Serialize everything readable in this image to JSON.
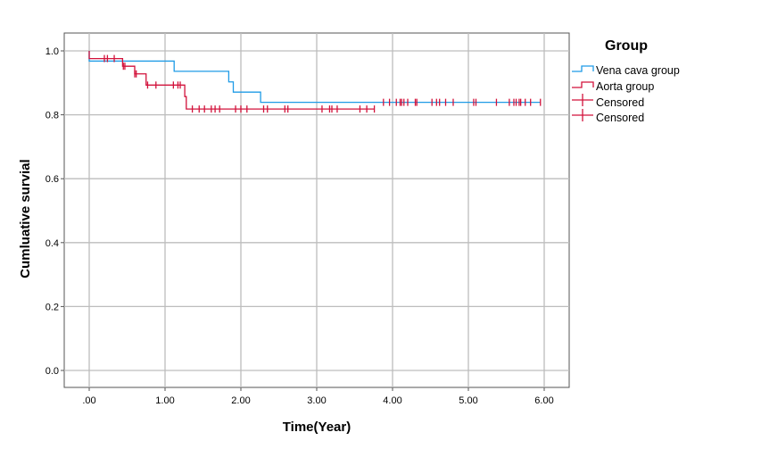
{
  "chart_data": {
    "type": "line",
    "subtype": "kaplan-meier step",
    "xlabel": "Time(Year)",
    "ylabel": "Cumluative survial",
    "xlim": [
      -0.33,
      6.33
    ],
    "ylim": [
      -0.055,
      1.055
    ],
    "xticks": [
      ".00",
      "1.00",
      "2.00",
      "3.00",
      "4.00",
      "5.00",
      "6.00"
    ],
    "xtick_values": [
      0,
      1,
      2,
      3,
      4,
      5,
      6
    ],
    "yticks": [
      "0.0",
      "0.2",
      "0.4",
      "0.6",
      "0.8",
      "1.0"
    ],
    "ytick_values": [
      0,
      0.2,
      0.4,
      0.6,
      0.8,
      1.0
    ],
    "grid": true,
    "legend": {
      "title": "Group",
      "placement": "right",
      "entries": [
        "Vena cava group",
        "Aorta group",
        "Censored",
        "Censored"
      ]
    },
    "series": [
      {
        "name": "Vena cava group",
        "color": "#1f9be6",
        "steps": [
          [
            0,
            1.0
          ],
          [
            0,
            0.968
          ],
          [
            1.12,
            0.936
          ],
          [
            1.84,
            0.903
          ],
          [
            1.9,
            0.871
          ],
          [
            2.26,
            0.839
          ],
          [
            5.95,
            0.839
          ]
        ],
        "censored": [
          3.88,
          3.96,
          4.05,
          4.1,
          4.12,
          4.15,
          4.2,
          4.3,
          4.32,
          4.52,
          4.58,
          4.62,
          4.7,
          4.8,
          5.07,
          5.1,
          5.37,
          5.54,
          5.6,
          5.63,
          5.67,
          5.69,
          5.75,
          5.82,
          5.95
        ]
      },
      {
        "name": "Aorta group",
        "color": "#d2123b",
        "steps": [
          [
            0,
            1.0
          ],
          [
            0,
            0.976
          ],
          [
            0.44,
            0.952
          ],
          [
            0.6,
            0.928
          ],
          [
            0.75,
            0.893
          ],
          [
            1.26,
            0.857
          ],
          [
            1.28,
            0.818
          ],
          [
            3.76,
            0.818
          ]
        ],
        "censored": [
          0.2,
          0.24,
          0.33,
          0.45,
          0.47,
          0.6,
          0.62,
          0.77,
          0.88,
          1.11,
          1.17,
          1.2,
          1.36,
          1.45,
          1.52,
          1.61,
          1.66,
          1.72,
          1.93,
          2.0,
          2.08,
          2.3,
          2.35,
          2.58,
          2.62,
          3.07,
          3.17,
          3.2,
          3.27,
          3.57,
          3.66,
          3.76
        ]
      }
    ],
    "censor_color": "#d2123b"
  }
}
